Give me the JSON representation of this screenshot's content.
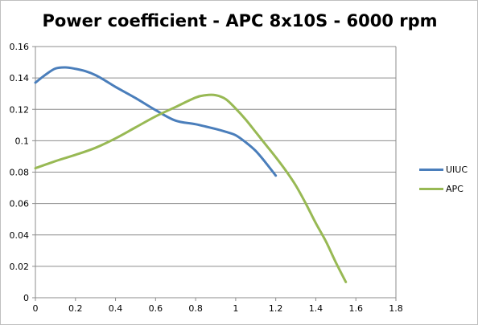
{
  "chart_data": {
    "type": "line",
    "title": "Power coefficient - APC 8x10S - 6000 rpm",
    "xlabel": "",
    "ylabel": "",
    "xlim": [
      0,
      1.8
    ],
    "ylim": [
      0,
      0.16
    ],
    "x_ticks": [
      "0",
      "0.2",
      "0.4",
      "0.6",
      "0.8",
      "1",
      "1.2",
      "1.4",
      "1.6",
      "1.8"
    ],
    "y_ticks": [
      "0",
      "0.02",
      "0.04",
      "0.06",
      "0.08",
      "0.1",
      "0.12",
      "0.14",
      "0.16"
    ],
    "grid": "horizontal",
    "legend_position": "right",
    "series": [
      {
        "name": "UIUC",
        "color": "#4a7ebb",
        "x": [
          0,
          0.05,
          0.1,
          0.15,
          0.2,
          0.25,
          0.3,
          0.35,
          0.4,
          0.5,
          0.6,
          0.7,
          0.8,
          0.9,
          0.95,
          1.0,
          1.05,
          1.1,
          1.15,
          1.2
        ],
        "y": [
          0.137,
          0.142,
          0.146,
          0.1467,
          0.1458,
          0.1443,
          0.1418,
          0.1382,
          0.1343,
          0.1272,
          0.1195,
          0.1128,
          0.1105,
          0.1075,
          0.1057,
          0.1035,
          0.099,
          0.0935,
          0.086,
          0.0778
        ]
      },
      {
        "name": "APC",
        "color": "#98b954",
        "x": [
          0,
          0.1,
          0.2,
          0.3,
          0.4,
          0.5,
          0.6,
          0.7,
          0.8,
          0.85,
          0.9,
          0.95,
          1.0,
          1.05,
          1.1,
          1.15,
          1.2,
          1.25,
          1.3,
          1.35,
          1.4,
          1.45,
          1.5,
          1.55
        ],
        "y": [
          0.0825,
          0.087,
          0.091,
          0.0955,
          0.1015,
          0.1085,
          0.1155,
          0.1215,
          0.1275,
          0.129,
          0.129,
          0.1265,
          0.1205,
          0.1135,
          0.1055,
          0.0975,
          0.0895,
          0.081,
          0.0715,
          0.06,
          0.0475,
          0.036,
          0.0225,
          0.01
        ]
      }
    ]
  }
}
